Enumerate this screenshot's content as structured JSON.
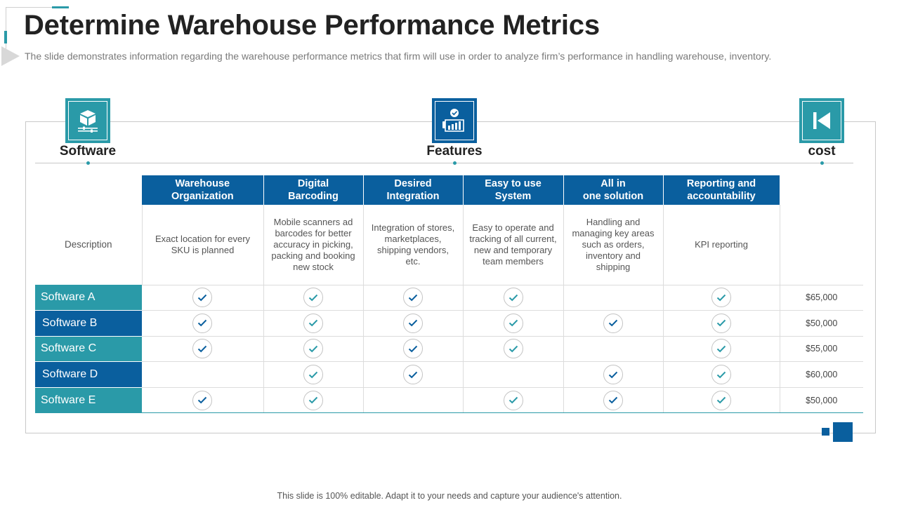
{
  "title": "Determine Warehouse Performance Metrics",
  "subtitle": "The slide demonstrates information regarding the warehouse performance metrics that firm will use in order to analyze firm’s performance in handling warehouse, inventory.",
  "headers": {
    "software": {
      "label": "Software",
      "icon": "package-settings-icon",
      "color": "#2a9aa8"
    },
    "features": {
      "label": "Features",
      "icon": "presenter-chart-check-icon",
      "color": "#0a5f9e"
    },
    "cost": {
      "label": "cost",
      "icon": "skip-back-icon",
      "color": "#2a9aa8"
    }
  },
  "features": [
    {
      "name_line1": "Warehouse",
      "name_line2": "Organization",
      "description": "Exact location for every SKU is planned"
    },
    {
      "name_line1": "Digital",
      "name_line2": "Barcoding",
      "description": "Mobile scanners ad barcodes for better accuracy in picking, packing and booking new stock"
    },
    {
      "name_line1": "Desired",
      "name_line2": "Integration",
      "description": "Integration of stores, marketplaces, shipping vendors, etc."
    },
    {
      "name_line1": "Easy to use",
      "name_line2": "System",
      "description": "Easy to operate and tracking of all current, new and temporary team members"
    },
    {
      "name_line1": "All in",
      "name_line2": "one solution",
      "description": "Handling and managing key areas such as orders, inventory and shipping"
    },
    {
      "name_line1": "Reporting and",
      "name_line2": "accountability",
      "description": "KPI reporting"
    }
  ],
  "description_label": "Description",
  "software": [
    {
      "name": "Software A",
      "checks": [
        true,
        true,
        true,
        true,
        false,
        true
      ],
      "cost": "$65,000"
    },
    {
      "name": "Software B",
      "checks": [
        true,
        true,
        true,
        true,
        true,
        true
      ],
      "cost": "$50,000"
    },
    {
      "name": "Software C",
      "checks": [
        true,
        true,
        true,
        true,
        false,
        true
      ],
      "cost": "$55,000"
    },
    {
      "name": "Software D",
      "checks": [
        false,
        true,
        true,
        false,
        true,
        true
      ],
      "cost": "$60,000"
    },
    {
      "name": "Software E",
      "checks": [
        true,
        true,
        false,
        true,
        true,
        true
      ],
      "cost": "$50,000"
    }
  ],
  "colors": {
    "teal": "#2a9aa8",
    "blue": "#0a5f9e"
  },
  "footer": "This slide is 100% editable. Adapt it to your needs and capture your audience's attention."
}
